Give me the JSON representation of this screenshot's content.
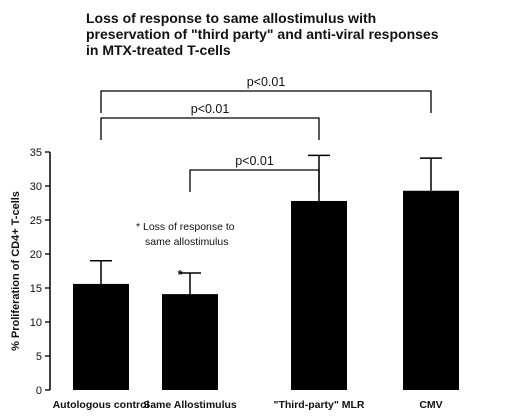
{
  "chart_data": {
    "type": "bar",
    "title_lines": [
      "Loss of response to same allostimulus with",
      "preservation of \"third party\" and anti-viral responses",
      "in MTX-treated T-cells"
    ],
    "ylabel": "% Proliferation of CD4+ T-cells",
    "xlabel": "",
    "ylim": [
      0,
      35
    ],
    "yticks": [
      0,
      5,
      10,
      15,
      20,
      25,
      30,
      35
    ],
    "categories": [
      "Autologous control",
      "Same Allostimulus",
      "\"Third-party\" MLR",
      "CMV"
    ],
    "values": [
      15.6,
      14.1,
      27.8,
      29.3
    ],
    "errors": [
      3.4,
      3.1,
      6.7,
      4.8
    ],
    "bar_color": "#000000",
    "significance": [
      {
        "from": 1,
        "to": 2,
        "label": "p<0.01"
      },
      {
        "from": 0,
        "to": 2,
        "label": "p<0.01"
      },
      {
        "from": 0,
        "to": 3,
        "label": "p<0.01"
      }
    ],
    "annotations": [
      {
        "bar": 1,
        "marker": "*"
      }
    ],
    "note": {
      "marker": "*",
      "lines": [
        "Loss of response to",
        "same  allostimulus"
      ]
    }
  }
}
